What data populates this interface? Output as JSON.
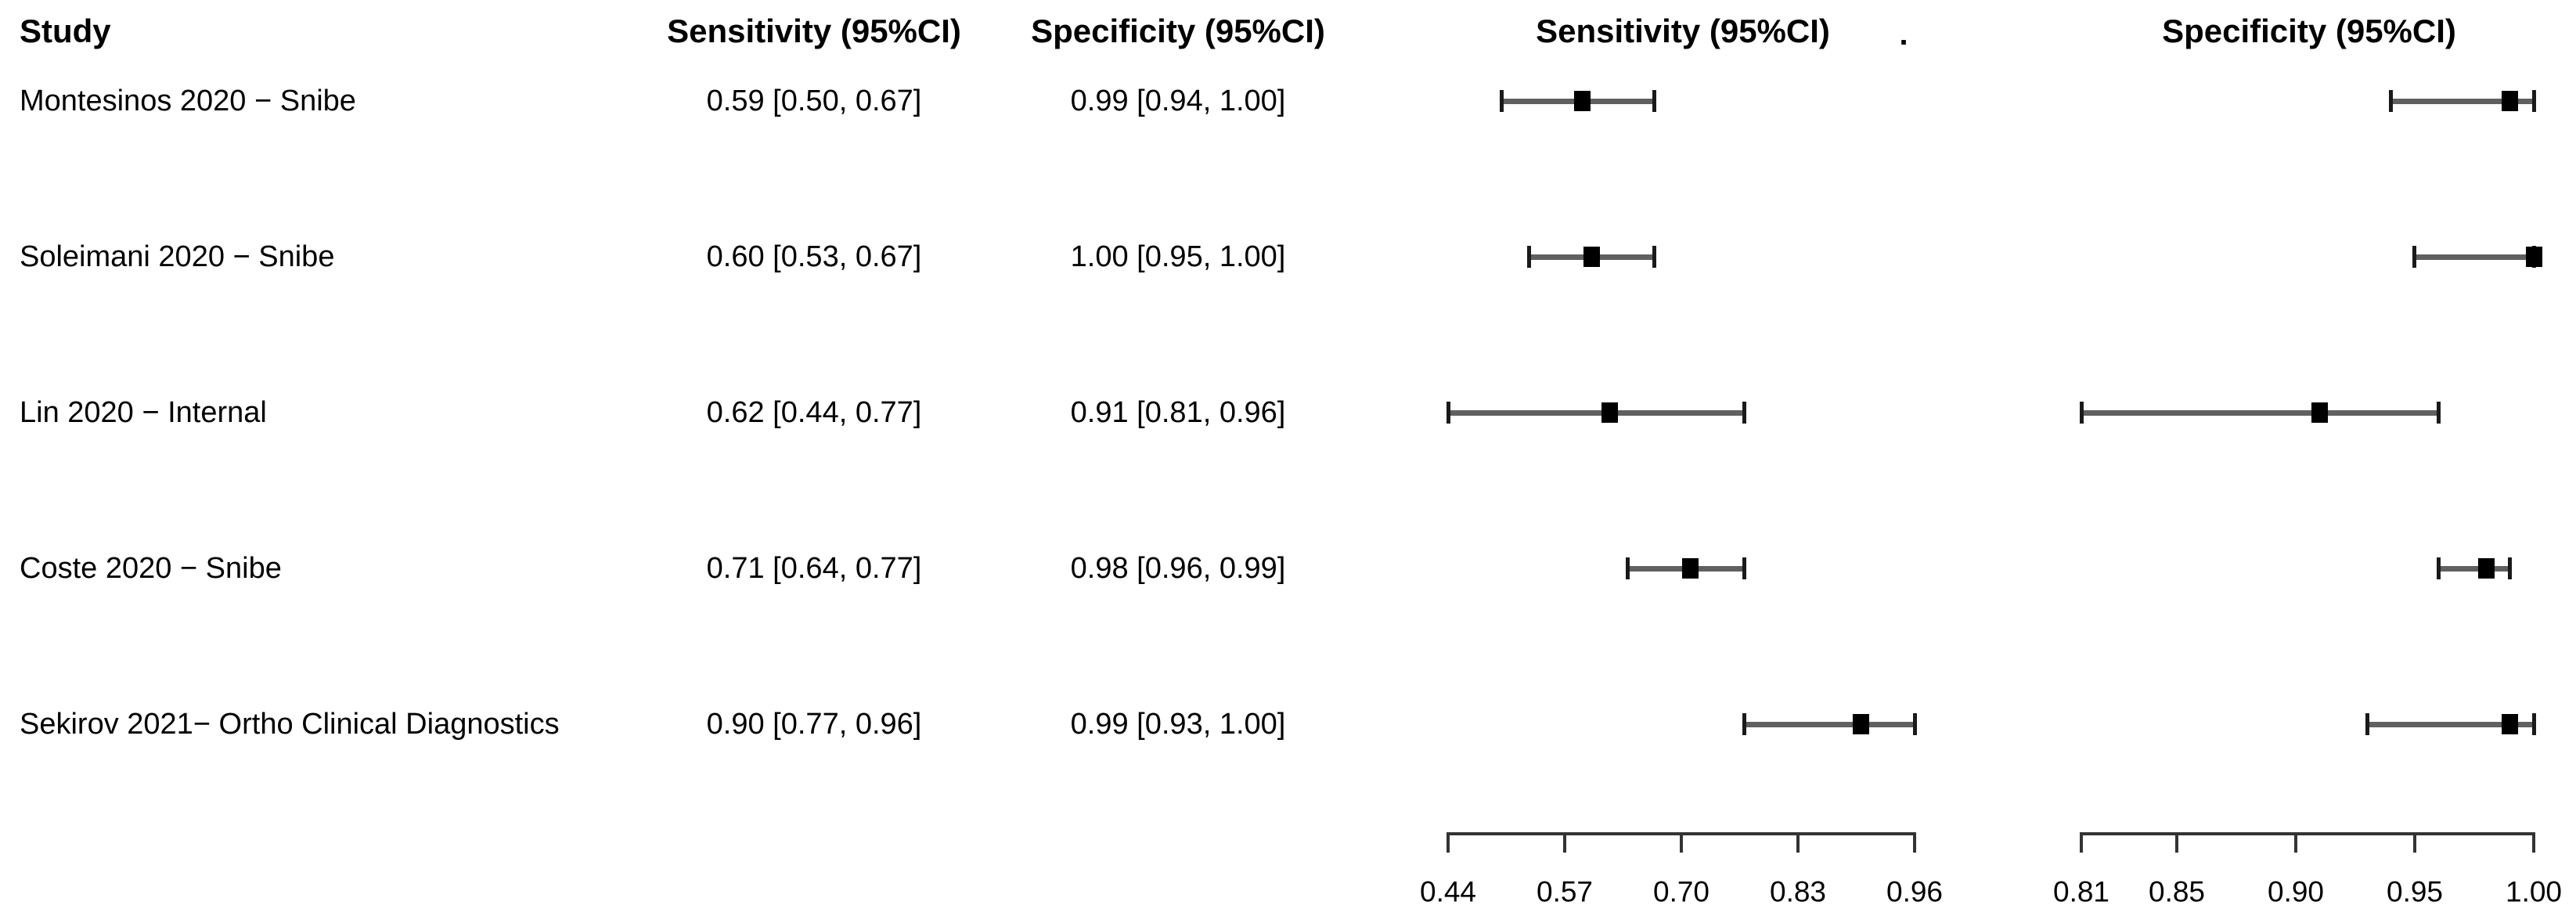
{
  "figure": {
    "background": "#ffffff",
    "text_color": "#000000",
    "column_headers": {
      "study": "Study",
      "sensitivity": "Sensitivity (95%CI)",
      "specificity": "Specificity (95%CI)"
    },
    "plot_headers": {
      "sensitivity": "Sensitivity (95%CI)",
      "stray_dot": ".",
      "specificity": "Specificity (95%CI)"
    }
  },
  "chart_data": {
    "type": "forest",
    "legend_position": "none",
    "grid": false,
    "measures": [
      {
        "key": "sensitivity",
        "label": "Sensitivity (95%CI)",
        "axis": {
          "min": 0.44,
          "max": 0.96,
          "tick_labels": [
            "0.44",
            "0.57",
            "0.70",
            "0.83",
            "0.96"
          ]
        }
      },
      {
        "key": "specificity",
        "label": "Specificity (95%CI)",
        "axis": {
          "min": 0.81,
          "max": 1.0,
          "tick_labels": [
            "0.81",
            "0.85",
            "0.90",
            "0.95",
            "1.00"
          ]
        }
      }
    ],
    "studies": [
      {
        "name": "Montesinos 2020 − Snibe",
        "sensitivity": {
          "text": "0.59 [0.50, 0.67]",
          "est": 0.59,
          "lo": 0.5,
          "hi": 0.67
        },
        "specificity": {
          "text": "0.99 [0.94, 1.00]",
          "est": 0.99,
          "lo": 0.94,
          "hi": 1.0
        }
      },
      {
        "name": "Soleimani 2020 − Snibe",
        "sensitivity": {
          "text": "0.60 [0.53, 0.67]",
          "est": 0.6,
          "lo": 0.53,
          "hi": 0.67
        },
        "specificity": {
          "text": "1.00 [0.95, 1.00]",
          "est": 1.0,
          "lo": 0.95,
          "hi": 1.0
        }
      },
      {
        "name": "Lin 2020 − Internal",
        "sensitivity": {
          "text": "0.62 [0.44, 0.77]",
          "est": 0.62,
          "lo": 0.44,
          "hi": 0.77
        },
        "specificity": {
          "text": "0.91 [0.81, 0.96]",
          "est": 0.91,
          "lo": 0.81,
          "hi": 0.96
        }
      },
      {
        "name": "Coste 2020 − Snibe",
        "sensitivity": {
          "text": "0.71 [0.64, 0.77]",
          "est": 0.71,
          "lo": 0.64,
          "hi": 0.77
        },
        "specificity": {
          "text": "0.98 [0.96, 0.99]",
          "est": 0.98,
          "lo": 0.96,
          "hi": 0.99
        }
      },
      {
        "name": "Sekirov 2021− Ortho Clinical Diagnostics",
        "sensitivity": {
          "text": "0.90 [0.77, 0.96]",
          "est": 0.9,
          "lo": 0.77,
          "hi": 0.96
        },
        "specificity": {
          "text": "0.99 [0.93, 1.00]",
          "est": 0.99,
          "lo": 0.93,
          "hi": 1.0
        }
      }
    ],
    "colors": {
      "marker": "#000000",
      "ci_line": "#606060",
      "ci_cap": "#1a1a1a",
      "axis": "#333333"
    }
  }
}
